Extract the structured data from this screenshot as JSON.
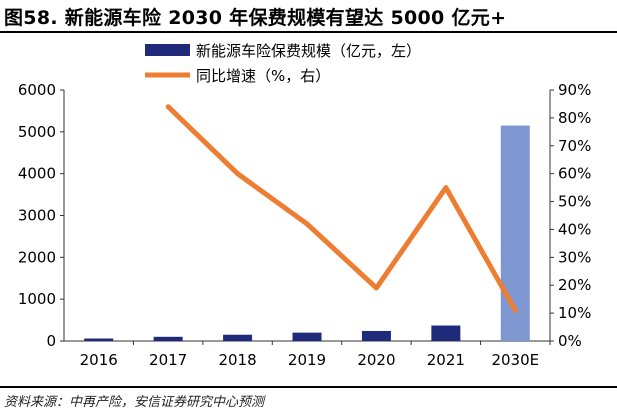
{
  "header": {
    "title": "图58. 新能源车险 2030 年保费规模有望达 5000 亿元+"
  },
  "footer": {
    "source": "资料来源：中再产险，安信证券研究中心预测"
  },
  "colors": {
    "bar": "#1f2a7a",
    "bar_forecast": "#7f97d0",
    "line": "#ed7d31"
  },
  "chart_data": {
    "type": "bar",
    "categories": [
      "2016",
      "2017",
      "2018",
      "2019",
      "2020",
      "2021",
      "2030E"
    ],
    "series": [
      {
        "name": "新能源车险保费规模（亿元，左）",
        "type": "bar",
        "axis": "left",
        "values": [
          60,
          100,
          150,
          200,
          240,
          370,
          5150
        ]
      },
      {
        "name": "同比增速（%，右）",
        "type": "line",
        "axis": "right",
        "values": [
          null,
          84,
          60,
          42,
          19,
          55,
          11
        ]
      }
    ],
    "y_left": {
      "ylim": [
        0,
        6000
      ],
      "ticks": [
        "0",
        "1000",
        "2000",
        "3000",
        "4000",
        "5000",
        "6000"
      ]
    },
    "y_right": {
      "ylim": [
        0,
        90
      ],
      "ticks": [
        "0%",
        "10%",
        "20%",
        "30%",
        "40%",
        "50%",
        "60%",
        "70%",
        "80%",
        "90%"
      ]
    },
    "grid": false,
    "legend": "top-center"
  }
}
